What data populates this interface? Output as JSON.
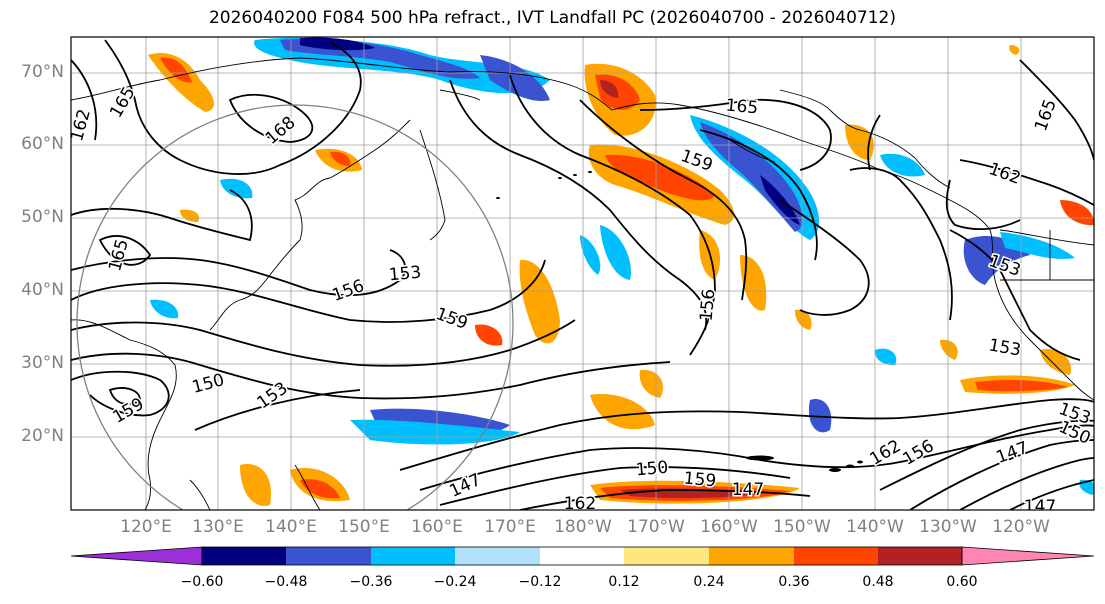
{
  "title": "2026040200 F084 500 hPa refract., IVT Landfall PC (2026040700 - 2026040712)",
  "map": {
    "lat_labels": [
      "70°N",
      "60°N",
      "50°N",
      "40°N",
      "30°N",
      "20°N"
    ],
    "lon_labels": [
      "120°E",
      "130°E",
      "140°E",
      "150°E",
      "160°E",
      "170°E",
      "180°W",
      "170°W",
      "160°W",
      "150°W",
      "140°W",
      "130°W",
      "120°W"
    ],
    "contour_labels": [
      {
        "text": "162"
      },
      {
        "text": "165"
      },
      {
        "text": "168"
      },
      {
        "text": "165"
      },
      {
        "text": "159"
      },
      {
        "text": "165"
      },
      {
        "text": "162"
      },
      {
        "text": "165"
      },
      {
        "text": "153"
      },
      {
        "text": "156"
      },
      {
        "text": "159"
      },
      {
        "text": "156"
      },
      {
        "text": "150"
      },
      {
        "text": "153"
      },
      {
        "text": "159"
      },
      {
        "text": "153"
      },
      {
        "text": "153"
      },
      {
        "text": "147"
      },
      {
        "text": "150"
      },
      {
        "text": "159"
      },
      {
        "text": "162"
      },
      {
        "text": "147"
      },
      {
        "text": "162"
      },
      {
        "text": "156"
      },
      {
        "text": "147"
      },
      {
        "text": "150"
      },
      {
        "text": "153"
      },
      {
        "text": "147"
      }
    ]
  },
  "colorbar": {
    "colors": [
      "#9b30d9",
      "#000080",
      "#3a53d1",
      "#00bfff",
      "#b0e0fa",
      "#ffffff",
      "#ffe680",
      "#ffa500",
      "#ff4500",
      "#b22222",
      "#ff85b3"
    ],
    "tick_labels": [
      "−0.60",
      "−0.48",
      "−0.36",
      "−0.24",
      "−0.12",
      "0.12",
      "0.24",
      "0.36",
      "0.48",
      "0.60"
    ]
  }
}
